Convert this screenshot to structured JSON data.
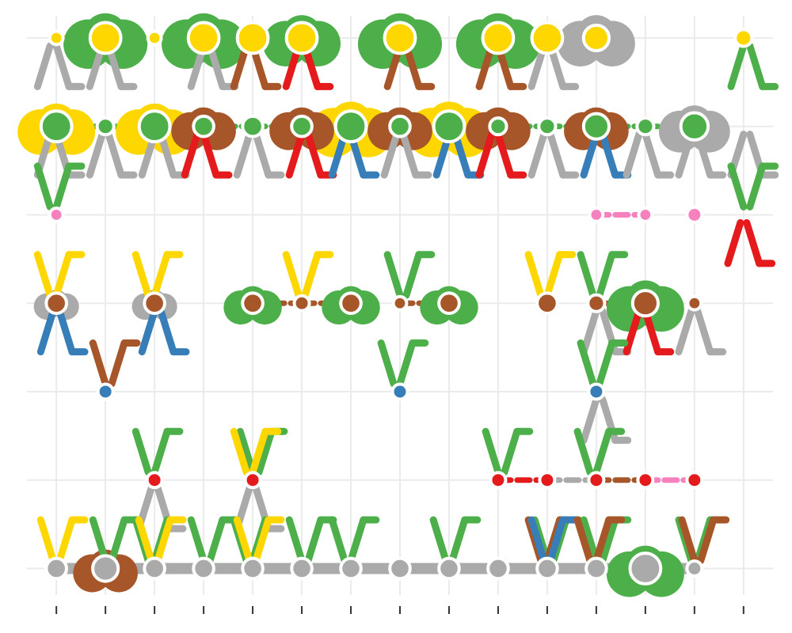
{
  "chart_data": {
    "type": "scatter",
    "title": "",
    "xlabel": "",
    "ylabel": "",
    "x_ticks": [
      1,
      2,
      3,
      4,
      5,
      6,
      7,
      8,
      9,
      10,
      11,
      12,
      13,
      14,
      15
    ],
    "x_tick_labels": [
      "",
      "",
      "",
      "",
      "",
      "",
      "",
      "",
      "",
      "",
      "",
      "",
      "",
      "",
      ""
    ],
    "y_levels": [
      1,
      2,
      3,
      4,
      5,
      6,
      7
    ],
    "y_tick_labels": [
      "",
      "",
      "",
      "",
      "",
      "",
      ""
    ],
    "xlim": [
      0.4,
      15.6
    ],
    "ylim": [
      0.7,
      7.25
    ],
    "grid": true,
    "legend": "none",
    "colors": {
      "grid": "#ebebeb",
      "tick": "#333333",
      "yellow": "#FFD700",
      "green": "#4DAF4A",
      "brown": "#A65628",
      "gray": "#AAAAAA",
      "red": "#E41A1C",
      "blue": "#377EB8",
      "pink": "#F781BF"
    },
    "rows": [
      {
        "y": 7,
        "color": "yellow",
        "points": [
          [
            1,
            0.4
          ],
          [
            2,
            1.4
          ],
          [
            3,
            0.4
          ],
          [
            4,
            1.4
          ],
          [
            5,
            1.4
          ],
          [
            6,
            1.4
          ],
          [
            8,
            1.4
          ],
          [
            10,
            1.4
          ],
          [
            11,
            1.4
          ],
          [
            12,
            1.1
          ],
          [
            15,
            0.6
          ]
        ]
      },
      {
        "y": 6,
        "color": "green",
        "points": [
          [
            1,
            1.4
          ],
          [
            2,
            0.6
          ],
          [
            3,
            1.4
          ],
          [
            4,
            0.8
          ],
          [
            5,
            0.8
          ],
          [
            6,
            0.8
          ],
          [
            7,
            1.4
          ],
          [
            8,
            0.8
          ],
          [
            9,
            1.4
          ],
          [
            10,
            0.6
          ],
          [
            11,
            0.6
          ],
          [
            12,
            1.1
          ],
          [
            13,
            0.6
          ],
          [
            14,
            1.2
          ]
        ]
      },
      {
        "y": 5,
        "color": "pink",
        "points": [
          [
            1,
            0.4
          ],
          [
            12,
            0.4
          ],
          [
            13,
            0.4
          ],
          [
            14,
            0.5
          ]
        ]
      },
      {
        "y": 4,
        "color": "brown",
        "points": [
          [
            1,
            0.8
          ],
          [
            3,
            0.8
          ],
          [
            5,
            0.8
          ],
          [
            6,
            0.5
          ],
          [
            7,
            0.8
          ],
          [
            8,
            0.4
          ],
          [
            9,
            0.8
          ],
          [
            11,
            0.8
          ],
          [
            12,
            0.6
          ],
          [
            13,
            1.1
          ],
          [
            14,
            0.4
          ]
        ]
      },
      {
        "y": 3,
        "color": "blue",
        "points": [
          [
            2,
            0.5
          ],
          [
            8,
            0.5
          ],
          [
            12,
            0.5
          ]
        ]
      },
      {
        "y": 2,
        "color": "red",
        "points": [
          [
            3,
            0.5
          ],
          [
            5,
            0.5
          ],
          [
            10,
            0.5
          ],
          [
            11,
            0.5
          ],
          [
            12,
            0.5
          ],
          [
            13,
            0.5
          ],
          [
            14,
            0.5
          ]
        ]
      },
      {
        "y": 1,
        "color": "gray",
        "points": [
          [
            1,
            0.8
          ],
          [
            2,
            1.1
          ],
          [
            3,
            0.8
          ],
          [
            4,
            0.8
          ],
          [
            5,
            0.8
          ],
          [
            6,
            0.8
          ],
          [
            7,
            0.8
          ],
          [
            8,
            0.8
          ],
          [
            9,
            0.8
          ],
          [
            10,
            0.8
          ],
          [
            11,
            0.8
          ],
          [
            12,
            0.8
          ],
          [
            13,
            1.4
          ],
          [
            14,
            0.5
          ]
        ]
      }
    ],
    "edges": [
      {
        "y": 7,
        "from": 1,
        "to": 2,
        "color": "yellow"
      },
      {
        "y": 7,
        "from": 2,
        "to": 3,
        "color": "yellow"
      },
      {
        "y": 7,
        "from": 3,
        "to": 4,
        "color": "yellow"
      },
      {
        "y": 7,
        "from": 4,
        "to": 5,
        "color": "yellow"
      },
      {
        "y": 7,
        "from": 5,
        "to": 6,
        "color": "yellow"
      },
      {
        "y": 7,
        "from": 10,
        "to": 11,
        "color": "yellow"
      },
      {
        "y": 7,
        "from": 11,
        "to": 12,
        "color": "yellow"
      },
      {
        "y": 6,
        "from": 1,
        "to": 2,
        "color": "green"
      },
      {
        "y": 6,
        "from": 2,
        "to": 3,
        "color": "green"
      },
      {
        "y": 6,
        "from": 3,
        "to": 4,
        "color": "green"
      },
      {
        "y": 6,
        "from": 4,
        "to": 5,
        "color": "green"
      },
      {
        "y": 6,
        "from": 5,
        "to": 6,
        "color": "green"
      },
      {
        "y": 6,
        "from": 6,
        "to": 7,
        "color": "green"
      },
      {
        "y": 6,
        "from": 7,
        "to": 8,
        "color": "green"
      },
      {
        "y": 6,
        "from": 8,
        "to": 9,
        "color": "green"
      },
      {
        "y": 6,
        "from": 9,
        "to": 10,
        "color": "green"
      },
      {
        "y": 6,
        "from": 10,
        "to": 11,
        "color": "green"
      },
      {
        "y": 6,
        "from": 11,
        "to": 12,
        "color": "green"
      },
      {
        "y": 6,
        "from": 12,
        "to": 13,
        "color": "green"
      },
      {
        "y": 6,
        "from": 13,
        "to": 14,
        "color": "green"
      },
      {
        "y": 5,
        "from": 12,
        "to": 13,
        "color": "pink"
      },
      {
        "y": 4,
        "from": 5,
        "to": 6,
        "color": "brown"
      },
      {
        "y": 4,
        "from": 6,
        "to": 7,
        "color": "brown"
      },
      {
        "y": 4,
        "from": 8,
        "to": 9,
        "color": "brown"
      },
      {
        "y": 4,
        "from": 12,
        "to": 13,
        "color": "brown"
      },
      {
        "y": 2,
        "from": 10,
        "to": 11,
        "color": "red"
      },
      {
        "y": 2,
        "from": 11,
        "to": 12,
        "color": "gray"
      },
      {
        "y": 2,
        "from": 12,
        "to": 13,
        "color": "brown"
      },
      {
        "y": 2,
        "from": 13,
        "to": 14,
        "color": "pink"
      },
      {
        "y": 1,
        "from": 1,
        "to": 14,
        "color": "gray"
      }
    ],
    "blobs": [
      {
        "x": 2,
        "y": 7,
        "color": "green",
        "size": 1.3
      },
      {
        "x": 4,
        "y": 7,
        "color": "green",
        "size": 1.3
      },
      {
        "x": 6,
        "y": 7,
        "color": "green",
        "size": 1.2
      },
      {
        "x": 8,
        "y": 7,
        "color": "green",
        "size": 1.3
      },
      {
        "x": 10,
        "y": 7,
        "color": "green",
        "size": 1.3
      },
      {
        "x": 12,
        "y": 7,
        "color": "gray",
        "size": 1.2
      },
      {
        "x": 1,
        "y": 6,
        "color": "yellow",
        "size": 1.2
      },
      {
        "x": 3,
        "y": 6,
        "color": "yellow",
        "size": 1.2
      },
      {
        "x": 7,
        "y": 6,
        "color": "yellow",
        "size": 1.3
      },
      {
        "x": 9,
        "y": 6,
        "color": "yellow",
        "size": 1.3
      },
      {
        "x": 4,
        "y": 6,
        "color": "brown",
        "size": 1.0
      },
      {
        "x": 6,
        "y": 6,
        "color": "brown",
        "size": 1.0
      },
      {
        "x": 8,
        "y": 6,
        "color": "brown",
        "size": 1.0
      },
      {
        "x": 10,
        "y": 6,
        "color": "brown",
        "size": 1.0
      },
      {
        "x": 12,
        "y": 6,
        "color": "brown",
        "size": 1.0
      },
      {
        "x": 14,
        "y": 6,
        "color": "gray",
        "size": 1.1
      },
      {
        "x": 5,
        "y": 4,
        "color": "green",
        "size": 0.9
      },
      {
        "x": 7,
        "y": 4,
        "color": "green",
        "size": 0.9
      },
      {
        "x": 9,
        "y": 4,
        "color": "green",
        "size": 0.9
      },
      {
        "x": 13,
        "y": 4,
        "color": "green",
        "size": 1.2
      },
      {
        "x": 1,
        "y": 4,
        "color": "gray",
        "size": 0.7
      },
      {
        "x": 3,
        "y": 4,
        "color": "gray",
        "size": 0.7
      },
      {
        "x": 2,
        "y": 1,
        "color": "brown",
        "size": 1.0
      },
      {
        "x": 13,
        "y": 1,
        "color": "green",
        "size": 1.2
      }
    ],
    "sprouts": [
      {
        "x": 1,
        "y": 7,
        "color": "gray",
        "dir": "down"
      },
      {
        "x": 2,
        "y": 7,
        "color": "gray",
        "dir": "down"
      },
      {
        "x": 4,
        "y": 7,
        "color": "gray",
        "dir": "down"
      },
      {
        "x": 5,
        "y": 7,
        "color": "brown",
        "dir": "down"
      },
      {
        "x": 6,
        "y": 7,
        "color": "red",
        "dir": "down"
      },
      {
        "x": 8,
        "y": 7,
        "color": "brown",
        "dir": "down"
      },
      {
        "x": 10,
        "y": 7,
        "color": "brown",
        "dir": "down"
      },
      {
        "x": 11,
        "y": 7,
        "color": "gray",
        "dir": "down"
      },
      {
        "x": 15,
        "y": 7,
        "color": "green",
        "dir": "down"
      },
      {
        "x": 1,
        "y": 6,
        "color": "gray",
        "dir": "down"
      },
      {
        "x": 2,
        "y": 6,
        "color": "gray",
        "dir": "down"
      },
      {
        "x": 3,
        "y": 6,
        "color": "gray",
        "dir": "down"
      },
      {
        "x": 4,
        "y": 6,
        "color": "red",
        "dir": "down"
      },
      {
        "x": 5,
        "y": 6,
        "color": "gray",
        "dir": "down"
      },
      {
        "x": 6,
        "y": 6,
        "color": "red",
        "dir": "down"
      },
      {
        "x": 7,
        "y": 6,
        "color": "blue",
        "dir": "down"
      },
      {
        "x": 8,
        "y": 6,
        "color": "gray",
        "dir": "down"
      },
      {
        "x": 9,
        "y": 6,
        "color": "blue",
        "dir": "down"
      },
      {
        "x": 10,
        "y": 6,
        "color": "red",
        "dir": "down"
      },
      {
        "x": 11,
        "y": 6,
        "color": "gray",
        "dir": "down"
      },
      {
        "x": 12,
        "y": 6,
        "color": "blue",
        "dir": "down"
      },
      {
        "x": 13,
        "y": 6,
        "color": "gray",
        "dir": "down"
      },
      {
        "x": 14,
        "y": 6,
        "color": "gray",
        "dir": "down"
      },
      {
        "x": 15,
        "y": 6,
        "color": "gray",
        "dir": "down"
      },
      {
        "x": 1,
        "y": 5,
        "color": "green",
        "dir": "up"
      },
      {
        "x": 15,
        "y": 5,
        "color": "red",
        "dir": "down"
      },
      {
        "x": 15,
        "y": 5,
        "color": "green",
        "dir": "up"
      },
      {
        "x": 1,
        "y": 4,
        "color": "yellow",
        "dir": "up"
      },
      {
        "x": 1,
        "y": 4,
        "color": "blue",
        "dir": "down"
      },
      {
        "x": 3,
        "y": 4,
        "color": "blue",
        "dir": "down"
      },
      {
        "x": 3,
        "y": 4,
        "color": "yellow",
        "dir": "up"
      },
      {
        "x": 6,
        "y": 4,
        "color": "yellow",
        "dir": "up"
      },
      {
        "x": 8,
        "y": 4,
        "color": "green",
        "dir": "up"
      },
      {
        "x": 11,
        "y": 4,
        "color": "yellow",
        "dir": "up"
      },
      {
        "x": 12,
        "y": 4,
        "color": "green",
        "dir": "up"
      },
      {
        "x": 12,
        "y": 4,
        "color": "gray",
        "dir": "down"
      },
      {
        "x": 13,
        "y": 4,
        "color": "red",
        "dir": "down"
      },
      {
        "x": 14,
        "y": 4,
        "color": "gray",
        "dir": "down"
      },
      {
        "x": 2,
        "y": 3,
        "color": "brown",
        "dir": "up"
      },
      {
        "x": 8,
        "y": 3,
        "color": "green",
        "dir": "up"
      },
      {
        "x": 12,
        "y": 3,
        "color": "green",
        "dir": "up"
      },
      {
        "x": 12,
        "y": 3,
        "color": "gray",
        "dir": "down"
      },
      {
        "x": 3,
        "y": 2,
        "color": "green",
        "dir": "up"
      },
      {
        "x": 3,
        "y": 2,
        "color": "gray",
        "dir": "down"
      },
      {
        "x": 5,
        "y": 2,
        "color": "green",
        "dir": "up"
      },
      {
        "x": 5,
        "y": 2,
        "color": "yellow",
        "dir": "up"
      },
      {
        "x": 5,
        "y": 2,
        "color": "gray",
        "dir": "down"
      },
      {
        "x": 10,
        "y": 2,
        "color": "green",
        "dir": "up"
      },
      {
        "x": 12,
        "y": 2,
        "color": "green",
        "dir": "up"
      },
      {
        "x": 1,
        "y": 1,
        "color": "yellow",
        "dir": "up"
      },
      {
        "x": 2,
        "y": 1,
        "color": "green",
        "dir": "up"
      },
      {
        "x": 3,
        "y": 1,
        "color": "green",
        "dir": "up"
      },
      {
        "x": 3,
        "y": 1,
        "color": "yellow",
        "dir": "up"
      },
      {
        "x": 4,
        "y": 1,
        "color": "green",
        "dir": "up"
      },
      {
        "x": 5,
        "y": 1,
        "color": "green",
        "dir": "up"
      },
      {
        "x": 5,
        "y": 1,
        "color": "yellow",
        "dir": "up"
      },
      {
        "x": 6,
        "y": 1,
        "color": "green",
        "dir": "up"
      },
      {
        "x": 7,
        "y": 1,
        "color": "green",
        "dir": "up"
      },
      {
        "x": 9,
        "y": 1,
        "color": "green",
        "dir": "up"
      },
      {
        "x": 11,
        "y": 1,
        "color": "green",
        "dir": "up"
      },
      {
        "x": 11,
        "y": 1,
        "color": "brown",
        "dir": "up"
      },
      {
        "x": 11,
        "y": 1,
        "color": "blue",
        "dir": "up"
      },
      {
        "x": 12,
        "y": 1,
        "color": "green",
        "dir": "up"
      },
      {
        "x": 12,
        "y": 1,
        "color": "brown",
        "dir": "up"
      },
      {
        "x": 14,
        "y": 1,
        "color": "green",
        "dir": "up"
      },
      {
        "x": 14,
        "y": 1,
        "color": "brown",
        "dir": "up"
      }
    ]
  }
}
